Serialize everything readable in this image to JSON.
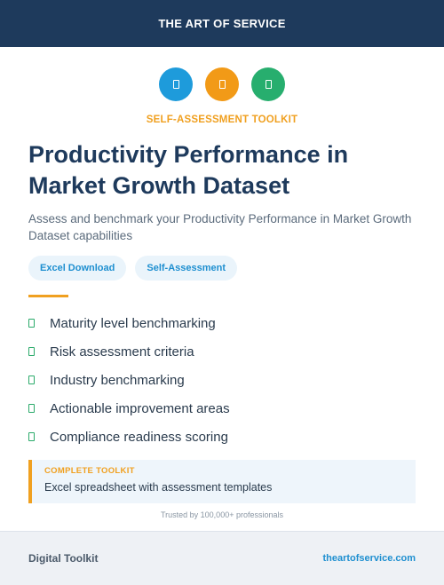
{
  "header": {
    "brand": "THE ART OF SERVICE"
  },
  "icons": [
    {
      "name": "document-icon",
      "color": "#1e9bdb"
    },
    {
      "name": "clipboard-icon",
      "color": "#f29a17"
    },
    {
      "name": "checklist-icon",
      "color": "#27ae6e"
    }
  ],
  "kicker": "SELF-ASSESSMENT TOOLKIT",
  "title": "Productivity Performance in Market Growth Dataset",
  "subtitle": "Assess and benchmark your Productivity Performance in Market Growth Dataset capabilities",
  "tags": [
    "Excel Download",
    "Self-Assessment"
  ],
  "features": [
    "Maturity level benchmarking",
    "Risk assessment criteria",
    "Industry benchmarking",
    "Actionable improvement areas",
    "Compliance readiness scoring"
  ],
  "callout": {
    "kicker": "COMPLETE TOOLKIT",
    "text": "Excel spreadsheet with assessment templates"
  },
  "trust": "Trusted by 100,000+ professionals",
  "footer": {
    "left": "Digital Toolkit",
    "right": "theartofservice.com"
  },
  "colors": {
    "navy": "#1e3a5c",
    "accent_orange": "#f0a020",
    "accent_blue": "#1e8fd0",
    "check_green": "#2aaa6a"
  }
}
